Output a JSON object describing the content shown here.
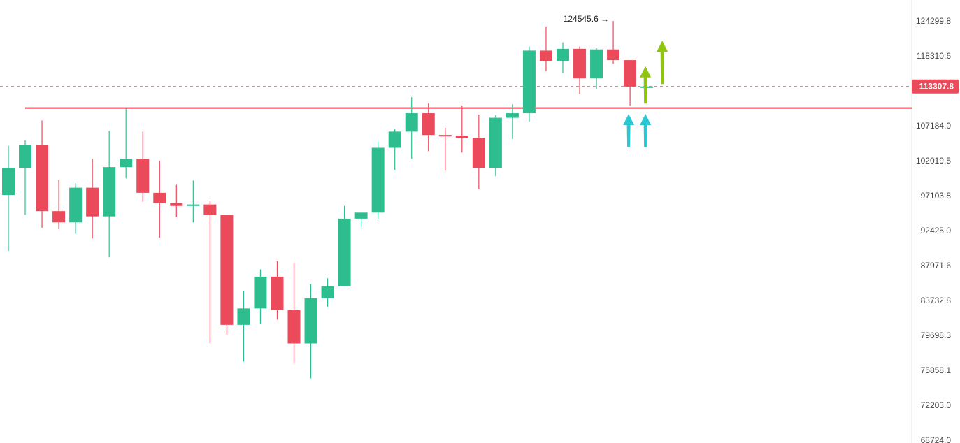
{
  "colors": {
    "up": "#2ebd8f",
    "down": "#ea4a5a",
    "level_line": "#e03c4a",
    "current_price": "#e84c5a",
    "arrow_cyan": "#29c8d4",
    "arrow_green": "#8fc511",
    "axis_text": "#444444"
  },
  "chart_data": {
    "type": "candlestick",
    "y_axis_ticks": [
      "124299.8",
      "118310.6",
      "113307.8",
      "107184.0",
      "102019.5",
      "97103.8",
      "92425.0",
      "87971.6",
      "83732.8",
      "79698.3",
      "75858.1",
      "72203.0",
      "68724.0"
    ],
    "y_axis_scale": "log",
    "ylim": [
      68724.0,
      124299.8
    ],
    "current_price": "113307.8",
    "peak_label": "124545.6 →",
    "support_level": 109900,
    "candles": [
      {
        "o": 97200,
        "h": 104200,
        "l": 89800,
        "c": 101000
      },
      {
        "o": 101000,
        "h": 105000,
        "l": 94500,
        "c": 104300
      },
      {
        "o": 104300,
        "h": 108000,
        "l": 92800,
        "c": 95000
      },
      {
        "o": 95000,
        "h": 99300,
        "l": 92600,
        "c": 93500
      },
      {
        "o": 93500,
        "h": 98800,
        "l": 92000,
        "c": 98200
      },
      {
        "o": 98200,
        "h": 102300,
        "l": 91400,
        "c": 94300
      },
      {
        "o": 94300,
        "h": 106400,
        "l": 89000,
        "c": 101100
      },
      {
        "o": 101100,
        "h": 109800,
        "l": 99500,
        "c": 102300
      },
      {
        "o": 102300,
        "h": 106300,
        "l": 96300,
        "c": 97500
      },
      {
        "o": 97500,
        "h": 102000,
        "l": 91500,
        "c": 96100
      },
      {
        "o": 96100,
        "h": 98600,
        "l": 94200,
        "c": 95700
      },
      {
        "o": 95700,
        "h": 99200,
        "l": 93500,
        "c": 95900
      },
      {
        "o": 95900,
        "h": 96400,
        "l": 78800,
        "c": 94500
      },
      {
        "o": 94500,
        "h": 94500,
        "l": 79800,
        "c": 80900
      },
      {
        "o": 80900,
        "h": 84900,
        "l": 76800,
        "c": 82800
      },
      {
        "o": 82800,
        "h": 87500,
        "l": 81000,
        "c": 86600
      },
      {
        "o": 86600,
        "h": 88500,
        "l": 81500,
        "c": 82600
      },
      {
        "o": 82600,
        "h": 88300,
        "l": 76600,
        "c": 78800
      },
      {
        "o": 78800,
        "h": 85700,
        "l": 75000,
        "c": 84000
      },
      {
        "o": 84000,
        "h": 86400,
        "l": 83000,
        "c": 85400
      },
      {
        "o": 85400,
        "h": 95700,
        "l": 85400,
        "c": 94000
      },
      {
        "o": 94000,
        "h": 94600,
        "l": 92900,
        "c": 94800
      },
      {
        "o": 94800,
        "h": 104800,
        "l": 94000,
        "c": 103900
      },
      {
        "o": 103900,
        "h": 106700,
        "l": 100700,
        "c": 106300
      },
      {
        "o": 106300,
        "h": 111600,
        "l": 102300,
        "c": 109100
      },
      {
        "o": 109100,
        "h": 110600,
        "l": 103400,
        "c": 105800
      },
      {
        "o": 105800,
        "h": 106900,
        "l": 100600,
        "c": 105700
      },
      {
        "o": 105700,
        "h": 110300,
        "l": 103200,
        "c": 105400
      },
      {
        "o": 105400,
        "h": 108900,
        "l": 98000,
        "c": 101000
      },
      {
        "o": 101000,
        "h": 108800,
        "l": 99800,
        "c": 108400
      },
      {
        "o": 108400,
        "h": 110500,
        "l": 105200,
        "c": 109100
      },
      {
        "o": 109100,
        "h": 119900,
        "l": 107800,
        "c": 119200
      },
      {
        "o": 119200,
        "h": 123300,
        "l": 115800,
        "c": 117500
      },
      {
        "o": 117500,
        "h": 120600,
        "l": 115500,
        "c": 119500
      },
      {
        "o": 119500,
        "h": 119900,
        "l": 112100,
        "c": 114600
      },
      {
        "o": 114600,
        "h": 119600,
        "l": 112900,
        "c": 119400
      },
      {
        "o": 119400,
        "h": 124300,
        "l": 117000,
        "c": 117600
      },
      {
        "o": 117600,
        "h": 117600,
        "l": 110300,
        "c": 113300
      },
      {
        "o": 113300,
        "h": 113600,
        "l": 112200,
        "c": 113300
      }
    ],
    "annotations": [
      {
        "type": "arrow-up",
        "color": "cyan",
        "candle": 37,
        "from": 104000,
        "to": 109000
      },
      {
        "type": "arrow-up",
        "color": "cyan",
        "candle": 38,
        "from": 104000,
        "to": 109000
      },
      {
        "type": "arrow-up",
        "color": "green",
        "candle": 38,
        "from": 110600,
        "to": 116600
      },
      {
        "type": "arrow-up",
        "color": "green",
        "candle": 39,
        "from": 113700,
        "to": 120900
      }
    ]
  }
}
